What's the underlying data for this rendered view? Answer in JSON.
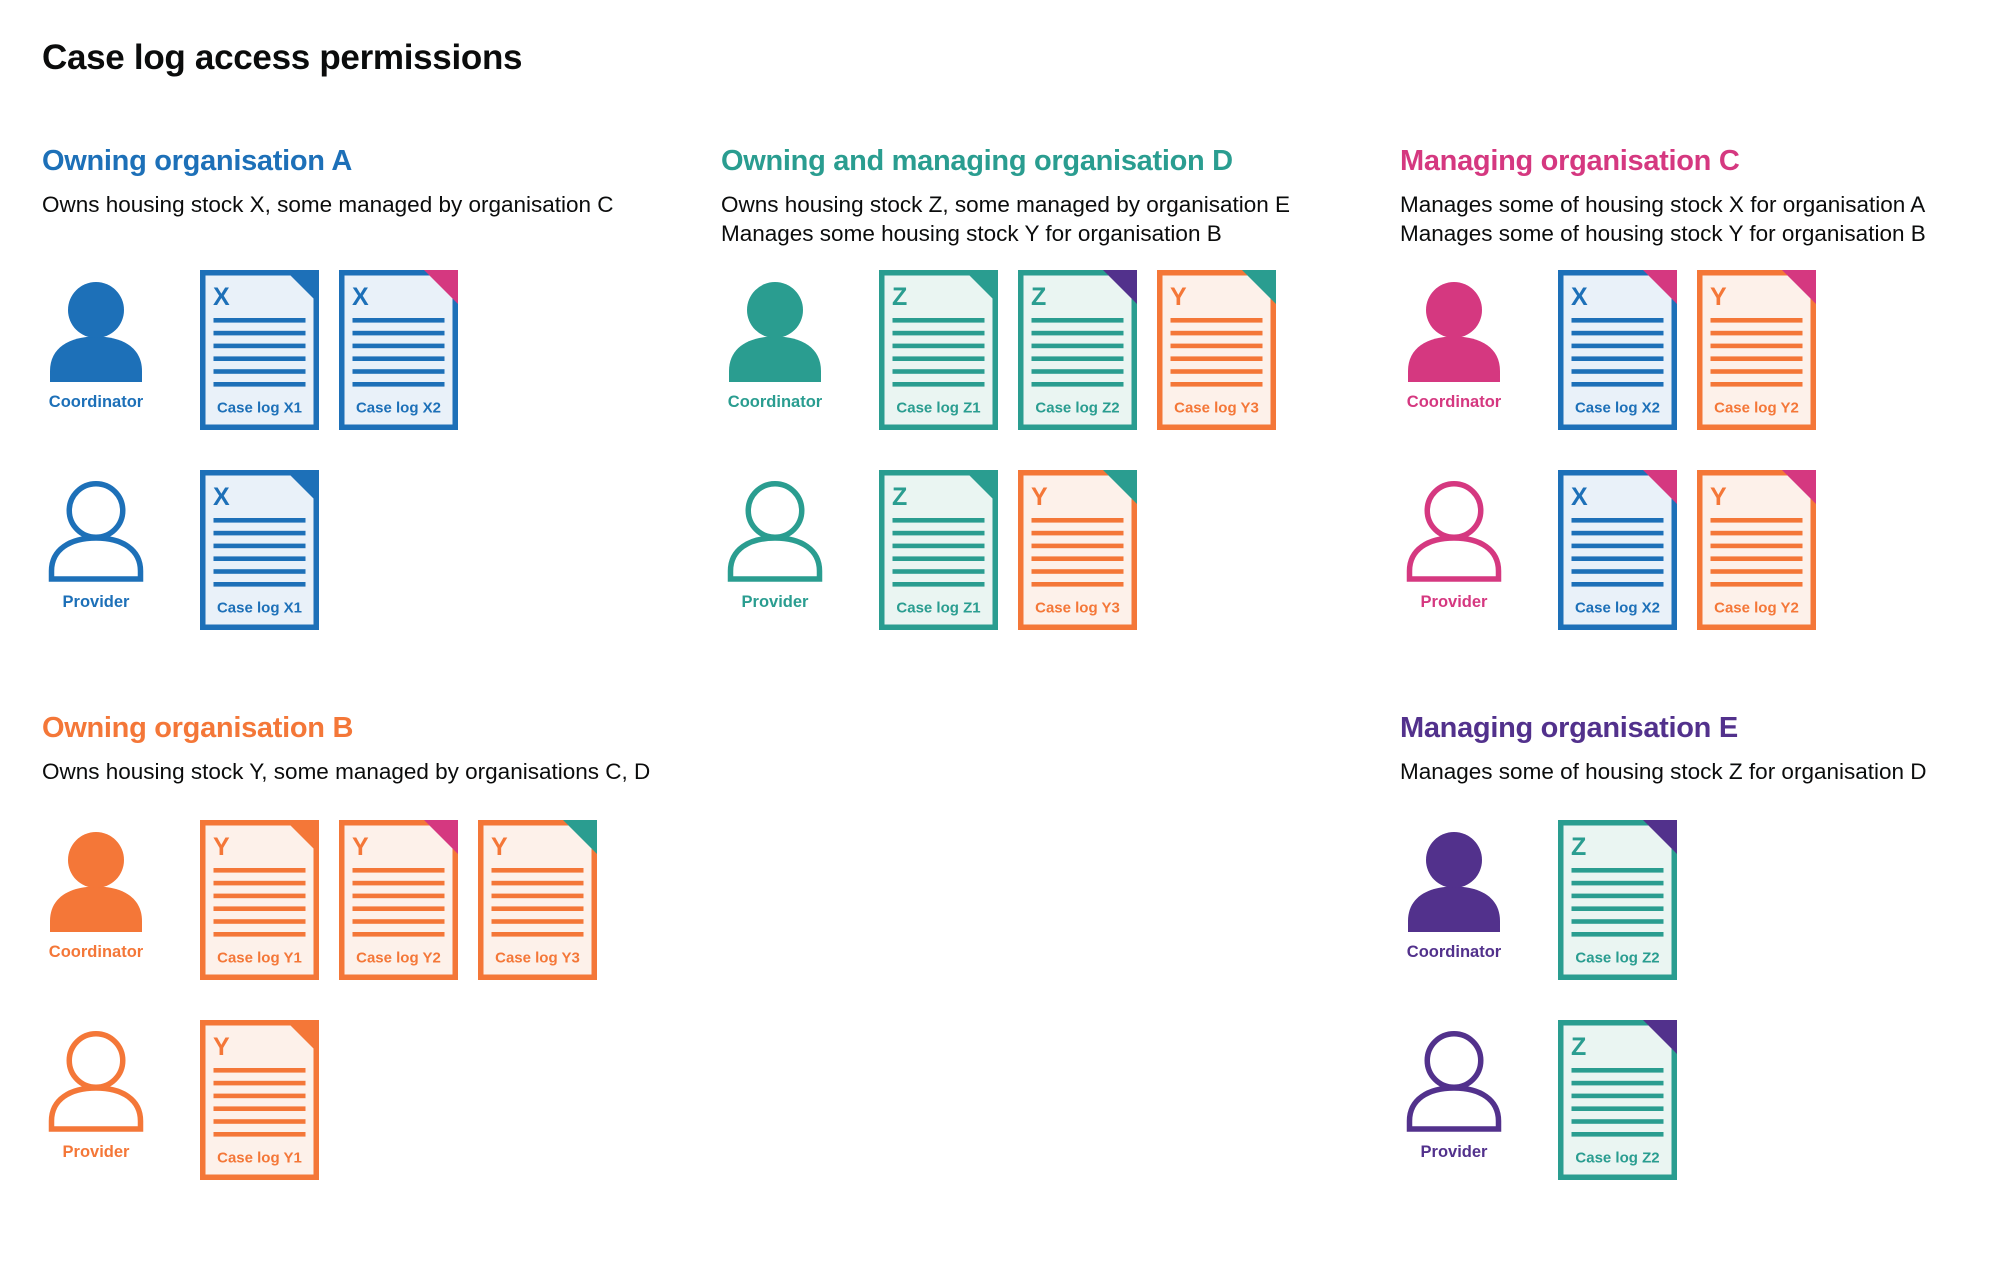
{
  "page_title": "Case log access permissions",
  "colors": {
    "blue": "#1d70b8",
    "teal": "#2a9d90",
    "pink": "#d53880",
    "orange": "#f47738",
    "purple": "#52318c",
    "text": "#0b0c0c",
    "fill_blue": "#e9f1f9",
    "fill_teal": "#eaf5f2",
    "fill_orange": "#fdf1ea",
    "white": "#ffffff"
  },
  "sections": [
    {
      "id": "org-a",
      "title": "Owning organisation A",
      "color": "blue",
      "description": [
        "Owns housing stock X, some managed by organisation C"
      ],
      "rows": [
        {
          "role_label": "Coordinator",
          "person": "filled",
          "docs": [
            {
              "letter": "X",
              "label": "Case log X1",
              "doc_color": "blue",
              "fold_color": "blue"
            },
            {
              "letter": "X",
              "label": "Case log X2",
              "doc_color": "blue",
              "fold_color": "pink"
            }
          ]
        },
        {
          "role_label": "Provider",
          "person": "outline",
          "docs": [
            {
              "letter": "X",
              "label": "Case log X1",
              "doc_color": "blue",
              "fold_color": "blue"
            }
          ]
        }
      ]
    },
    {
      "id": "org-d",
      "title": "Owning and managing organisation D",
      "color": "teal",
      "description": [
        "Owns housing stock Z, some managed by organisation E",
        "Manages some housing stock Y for organisation B"
      ],
      "rows": [
        {
          "role_label": "Coordinator",
          "person": "filled",
          "docs": [
            {
              "letter": "Z",
              "label": "Case log Z1",
              "doc_color": "teal",
              "fold_color": "teal"
            },
            {
              "letter": "Z",
              "label": "Case log Z2",
              "doc_color": "teal",
              "fold_color": "purple"
            },
            {
              "letter": "Y",
              "label": "Case log Y3",
              "doc_color": "orange",
              "fold_color": "teal"
            }
          ]
        },
        {
          "role_label": "Provider",
          "person": "outline",
          "docs": [
            {
              "letter": "Z",
              "label": "Case log Z1",
              "doc_color": "teal",
              "fold_color": "teal"
            },
            {
              "letter": "Y",
              "label": "Case log Y3",
              "doc_color": "orange",
              "fold_color": "teal"
            }
          ]
        }
      ]
    },
    {
      "id": "org-c",
      "title": "Managing organisation C",
      "color": "pink",
      "description": [
        "Manages some of housing stock X for organisation A",
        "Manages some of housing stock Y for organisation B"
      ],
      "rows": [
        {
          "role_label": "Coordinator",
          "person": "filled",
          "docs": [
            {
              "letter": "X",
              "label": "Case log X2",
              "doc_color": "blue",
              "fold_color": "pink"
            },
            {
              "letter": "Y",
              "label": "Case log Y2",
              "doc_color": "orange",
              "fold_color": "pink"
            }
          ]
        },
        {
          "role_label": "Provider",
          "person": "outline",
          "docs": [
            {
              "letter": "X",
              "label": "Case log X2",
              "doc_color": "blue",
              "fold_color": "pink"
            },
            {
              "letter": "Y",
              "label": "Case log Y2",
              "doc_color": "orange",
              "fold_color": "pink"
            }
          ]
        }
      ]
    },
    {
      "id": "org-b",
      "title": "Owning organisation B",
      "color": "orange",
      "description": [
        "Owns housing stock Y, some managed by organisations C, D"
      ],
      "rows": [
        {
          "role_label": "Coordinator",
          "person": "filled",
          "docs": [
            {
              "letter": "Y",
              "label": "Case log Y1",
              "doc_color": "orange",
              "fold_color": "orange"
            },
            {
              "letter": "Y",
              "label": "Case log Y2",
              "doc_color": "orange",
              "fold_color": "pink"
            },
            {
              "letter": "Y",
              "label": "Case log Y3",
              "doc_color": "orange",
              "fold_color": "teal"
            }
          ]
        },
        {
          "role_label": "Provider",
          "person": "outline",
          "docs": [
            {
              "letter": "Y",
              "label": "Case log Y1",
              "doc_color": "orange",
              "fold_color": "orange"
            }
          ]
        }
      ]
    },
    {
      "id": "org-e",
      "title": "Managing organisation E",
      "color": "purple",
      "description": [
        "Manages some of housing stock Z for organisation D"
      ],
      "rows": [
        {
          "role_label": "Coordinator",
          "person": "filled",
          "docs": [
            {
              "letter": "Z",
              "label": "Case log Z2",
              "doc_color": "teal",
              "fold_color": "purple"
            }
          ]
        },
        {
          "role_label": "Provider",
          "person": "outline",
          "docs": [
            {
              "letter": "Z",
              "label": "Case log Z2",
              "doc_color": "teal",
              "fold_color": "purple"
            }
          ]
        }
      ]
    }
  ]
}
